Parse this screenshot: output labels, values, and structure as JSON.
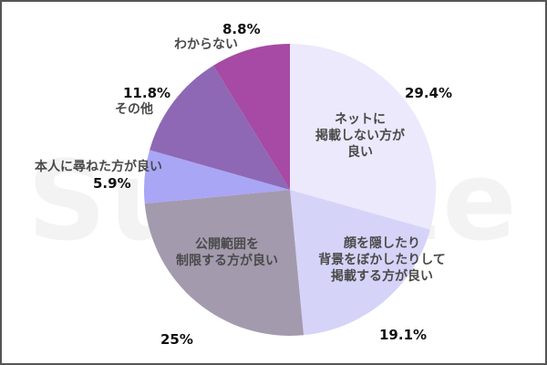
{
  "watermark": "Sumate",
  "chart_data": {
    "type": "pie",
    "title": "",
    "start_angle": "12 o'clock, clockwise",
    "categories": [
      "ネットに掲載しない方が良い",
      "顔を隠したり背景をぼかしたりして掲載する方が良い",
      "公開範囲を制限する方が良い",
      "本人に尋ねた方が良い",
      "その他",
      "わからない"
    ],
    "values": [
      29.4,
      19.1,
      25,
      5.9,
      11.8,
      8.8
    ],
    "value_labels": [
      "29.4%",
      "19.1%",
      "25%",
      "5.9%",
      "11.8%",
      "8.8%"
    ],
    "colors": [
      "#ebe9fb",
      "#d6d3f8",
      "#a49aae",
      "#a9a6f6",
      "#8e68b4",
      "#a64aa5"
    ],
    "legend": "none (labels placed on/around slices)"
  },
  "labels": {
    "s1": {
      "cat_lines": [
        "ネットに",
        "掲載しない方が",
        "良い"
      ],
      "pct": "29.4%"
    },
    "s2": {
      "cat_lines": [
        "顔を隠したり",
        "背景をぼかしたりして",
        "掲載する方が良い"
      ],
      "pct": "19.1%"
    },
    "s3": {
      "cat_lines": [
        "公開範囲を",
        "制限する方が良い"
      ],
      "pct": "25%"
    },
    "s4": {
      "cat": "本人に尋ねた方が良い",
      "pct": "5.9%"
    },
    "s5": {
      "cat": "その他",
      "pct": "11.8%"
    },
    "s6": {
      "cat": "わからない",
      "pct": "8.8%"
    }
  }
}
